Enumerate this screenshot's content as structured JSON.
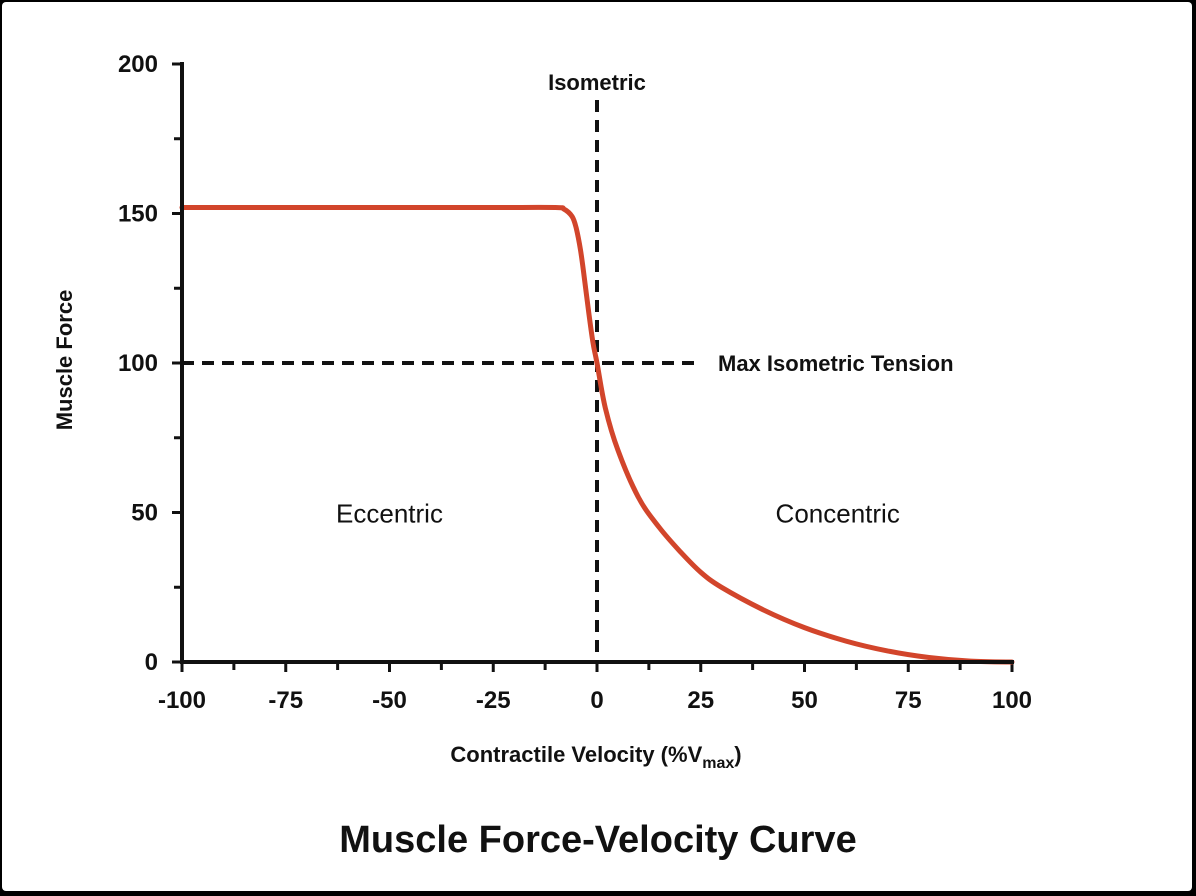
{
  "chart_data": {
    "type": "line",
    "title": "Muscle Force-Velocity Curve",
    "xlabel": "Contractile Velocity (%V",
    "xlabel_subscript": "max",
    "xlabel_suffix": ")",
    "ylabel": "Muscle Force",
    "xlim": [
      -100,
      100
    ],
    "ylim": [
      0,
      200
    ],
    "x_ticks": [
      "-100",
      "-75",
      "-50",
      "-25",
      "0",
      "25",
      "50",
      "75",
      "100"
    ],
    "y_ticks": [
      "0",
      "50",
      "100",
      "150",
      "200"
    ],
    "grid": false,
    "series": [
      {
        "color": "#d2452b",
        "x": [
          -100,
          -75,
          -50,
          -25,
          -10,
          -8,
          -6,
          -5,
          -4,
          -3,
          -2,
          -1,
          0,
          2,
          5,
          10,
          15,
          20,
          25,
          30,
          40,
          50,
          60,
          70,
          80,
          90,
          100
        ],
        "y": [
          152,
          152,
          152,
          152,
          152,
          151.5,
          149,
          145,
          138,
          128,
          117,
          107,
          100,
          85,
          71,
          55,
          45,
          37,
          30,
          25,
          17.5,
          11.5,
          7,
          3.7,
          1.5,
          0.3,
          0
        ]
      }
    ],
    "reference_lines": [
      {
        "orientation": "vertical",
        "x": 0,
        "label": "Isometric"
      },
      {
        "orientation": "horizontal",
        "y": 100,
        "label": "Max Isometric Tension"
      }
    ],
    "annotations": [
      {
        "text": "Eccentric",
        "x": -50,
        "y": 48
      },
      {
        "text": "Concentric",
        "x": 58,
        "y": 48
      }
    ]
  }
}
